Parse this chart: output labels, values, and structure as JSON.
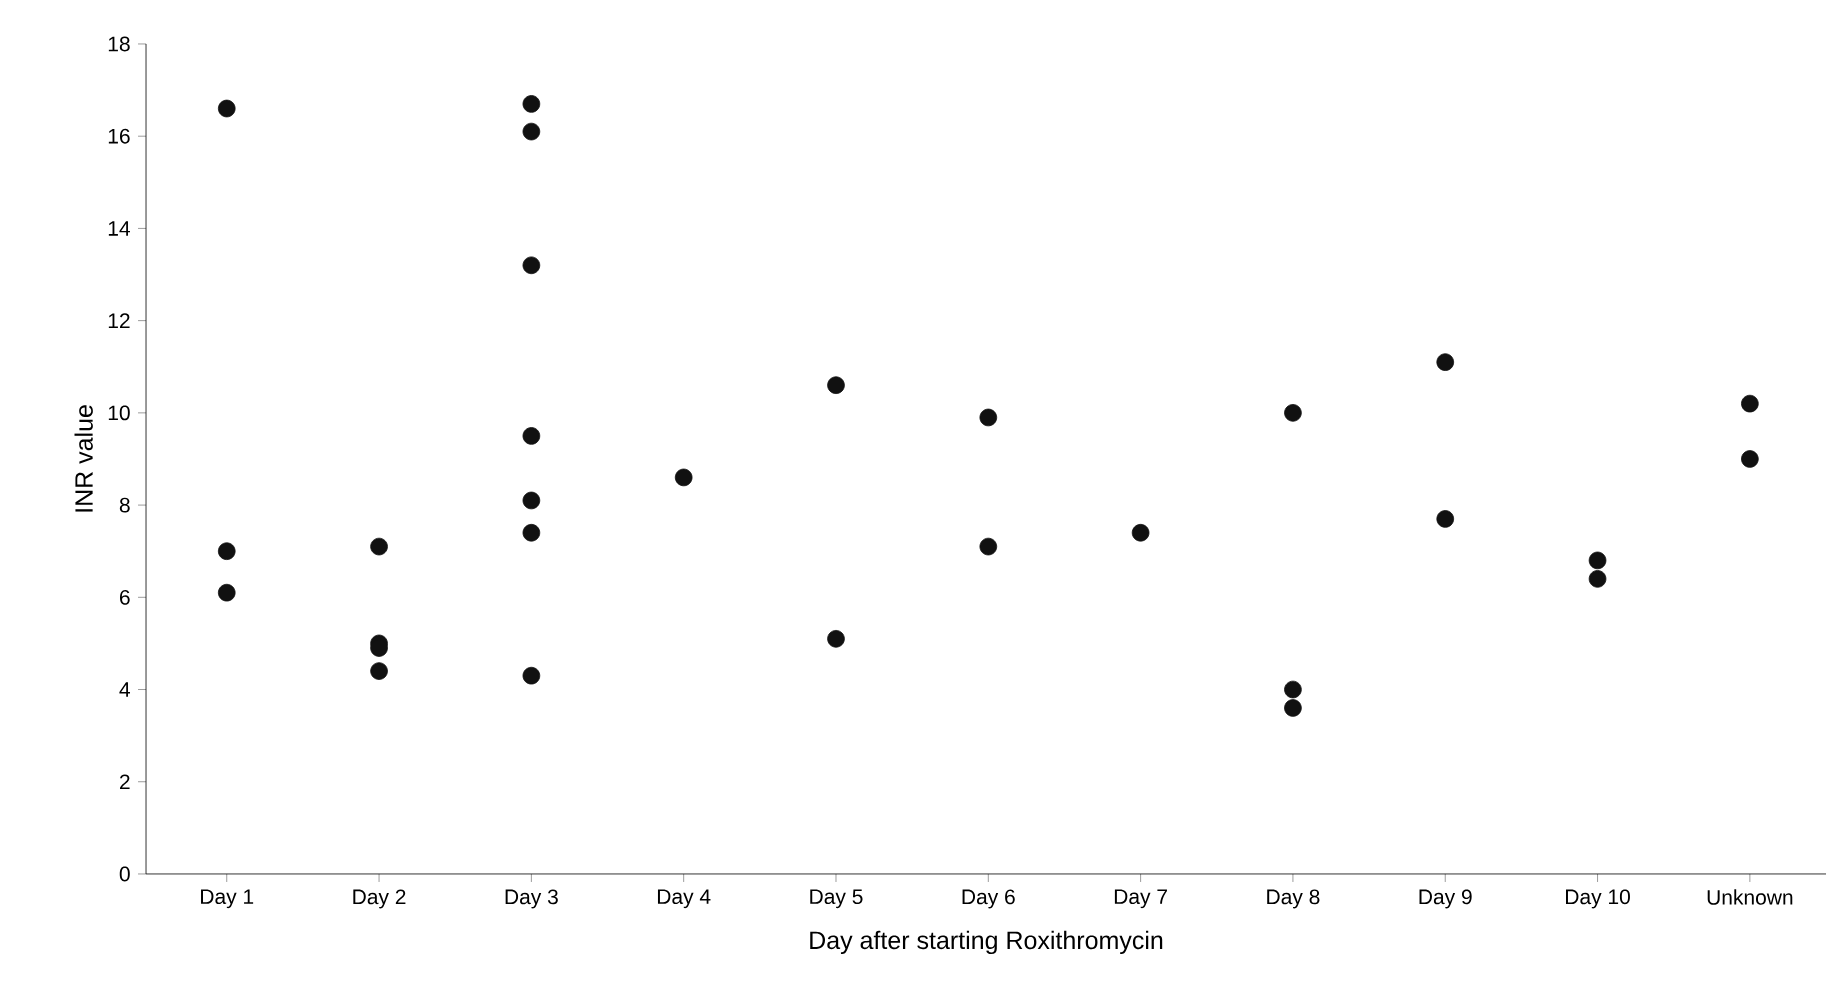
{
  "chart_data": {
    "type": "scatter",
    "xlabel": "Day after starting Roxithromycin",
    "ylabel": "INR value",
    "categories": [
      "Day 1",
      "Day 2",
      "Day 3",
      "Day 4",
      "Day 5",
      "Day 6",
      "Day 7",
      "Day 8",
      "Day 9",
      "Day 10",
      "Unknown"
    ],
    "ylim": [
      0,
      18
    ],
    "yticks": [
      0,
      2,
      4,
      6,
      8,
      10,
      12,
      14,
      16,
      18
    ],
    "marker": "circle",
    "series": [
      {
        "color": "#111111",
        "x": [
          "Day 1",
          "Day 1",
          "Day 1",
          "Day 2",
          "Day 2",
          "Day 2",
          "Day 2",
          "Day 3",
          "Day 3",
          "Day 3",
          "Day 3",
          "Day 3",
          "Day 3",
          "Day 3",
          "Day 4",
          "Day 5",
          "Day 5",
          "Day 6",
          "Day 6",
          "Day 7",
          "Day 8",
          "Day 8",
          "Day 8",
          "Day 9",
          "Day 9",
          "Day 10",
          "Day 10",
          "Unknown",
          "Unknown"
        ],
        "values": [
          16.6,
          7.0,
          6.1,
          7.1,
          5.0,
          4.9,
          4.4,
          16.7,
          16.1,
          13.2,
          9.5,
          8.1,
          7.4,
          4.3,
          8.6,
          10.6,
          5.1,
          9.9,
          7.1,
          7.4,
          10.0,
          4.0,
          3.6,
          11.1,
          7.7,
          6.8,
          6.4,
          10.2,
          9.0
        ]
      }
    ]
  }
}
